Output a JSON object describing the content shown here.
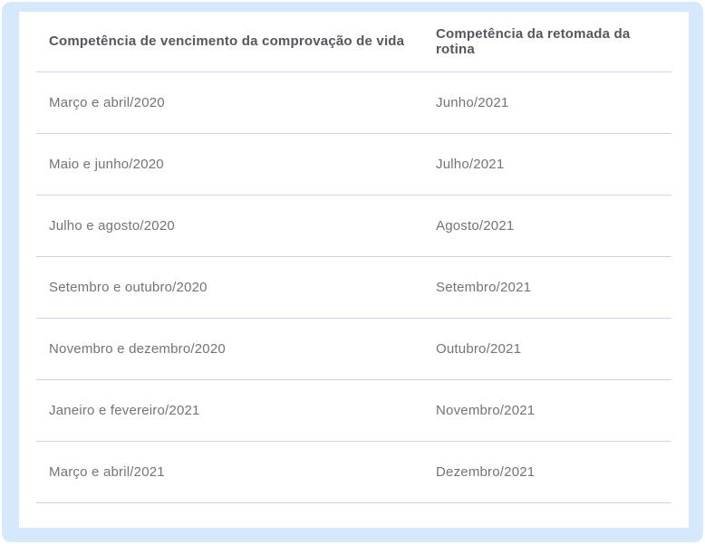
{
  "colors": {
    "frame_blue": "#d6e9fc",
    "card_background": "#ffffff",
    "divider": "#ccd8ea",
    "header_text": "#54575d",
    "body_text": "#70747b"
  },
  "table": {
    "columns": [
      "Competência de vencimento da comprovação de vida",
      "Competência da retomada da rotina"
    ],
    "rows": [
      [
        "Março e abril/2020",
        "Junho/2021"
      ],
      [
        "Maio e junho/2020",
        "Julho/2021"
      ],
      [
        "Julho e agosto/2020",
        "Agosto/2021"
      ],
      [
        "Setembro e outubro/2020",
        "Setembro/2021"
      ],
      [
        "Novembro e dezembro/2020",
        "Outubro/2021"
      ],
      [
        "Janeiro e fevereiro/2021",
        "Novembro/2021"
      ],
      [
        "Março e abril/2021",
        "Dezembro/2021"
      ]
    ]
  }
}
